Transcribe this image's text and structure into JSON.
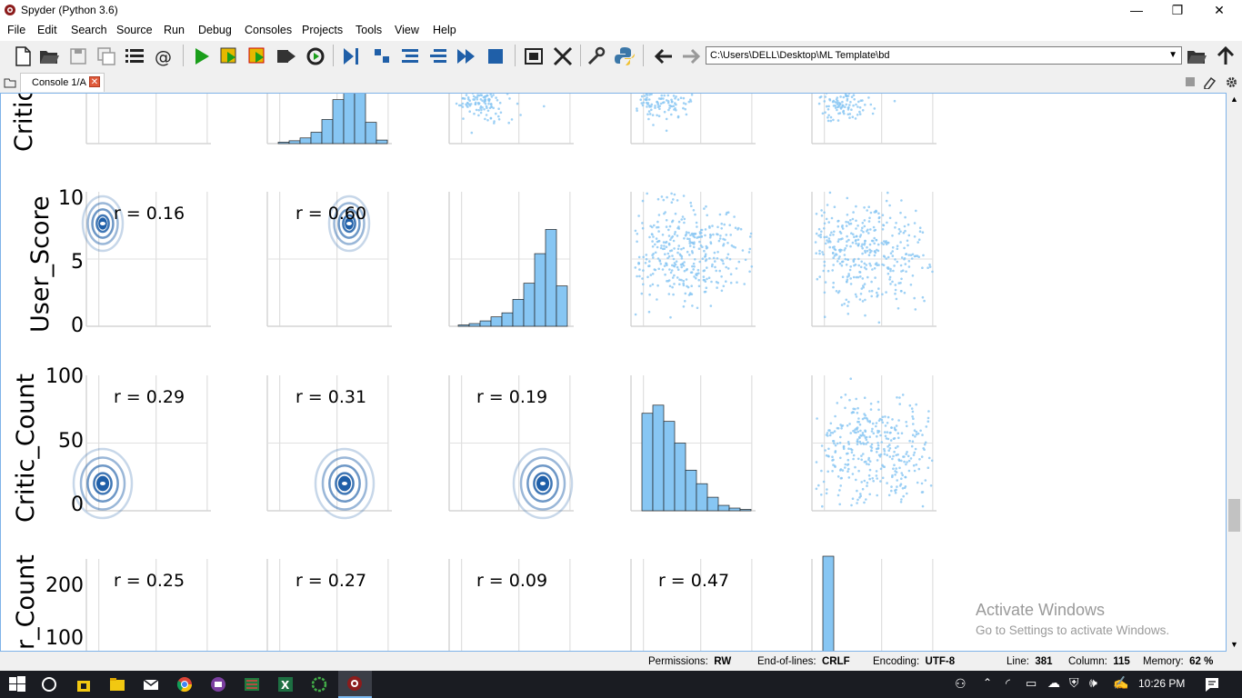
{
  "window": {
    "title": "Spyder (Python 3.6)",
    "minimize": "—",
    "restore": "❐",
    "close": "✕"
  },
  "menu": [
    "File",
    "Edit",
    "Search",
    "Source",
    "Run",
    "Debug",
    "Consoles",
    "Projects",
    "Tools",
    "View",
    "Help"
  ],
  "toolbar": {
    "icons": [
      "new-file-icon",
      "open-file-icon",
      "save-icon",
      "save-all-icon",
      "list-icon",
      "at-icon",
      "run-icon",
      "run-cell-icon",
      "run-cell-advance-icon",
      "run-selection-icon",
      "rerun-icon",
      "debug-icon",
      "step-icon",
      "step-into-icon",
      "step-return-icon",
      "continue-icon",
      "stop-icon",
      "maximize-pane-icon",
      "fullscreen-icon",
      "preferences-icon",
      "python-path-icon",
      "back-arrow-icon",
      "forward-arrow-icon"
    ],
    "path": "C:\\Users\\DELL\\Desktop\\ML Template\\bd"
  },
  "tab": {
    "label": "Console 1/A"
  },
  "plot": {
    "row_labels": [
      "Critic",
      "User_Score",
      "Critic_Count",
      "r_Count"
    ],
    "tick_labels": {
      "user_score": [
        "10",
        "5",
        "0"
      ],
      "critic_count": [
        "100",
        "50",
        "0"
      ],
      "user_count": [
        "200",
        "100"
      ]
    },
    "correlations": {
      "user_score": [
        "r = 0.16",
        "r = 0.60"
      ],
      "critic_count": [
        "r = 0.29",
        "r = 0.31",
        "r = 0.19"
      ],
      "user_count": [
        "r = 0.25",
        "r = 0.27",
        "r = 0.09",
        "r = 0.47"
      ]
    },
    "colors": {
      "kde": "#1f5fa8",
      "scatter": "#87c6f3",
      "hist": "#87c6f3"
    }
  },
  "watermark": {
    "line1": "Activate Windows",
    "line2": "Go to Settings to activate Windows."
  },
  "status": {
    "permissions_label": "Permissions:",
    "permissions": "RW",
    "eol_label": "End-of-lines:",
    "eol": "CRLF",
    "encoding_label": "Encoding:",
    "encoding": "UTF-8",
    "line_label": "Line:",
    "line": "381",
    "column_label": "Column:",
    "column": "115",
    "memory_label": "Memory:",
    "memory": "62 %"
  },
  "taskbar": {
    "time": "10:26 PM"
  }
}
